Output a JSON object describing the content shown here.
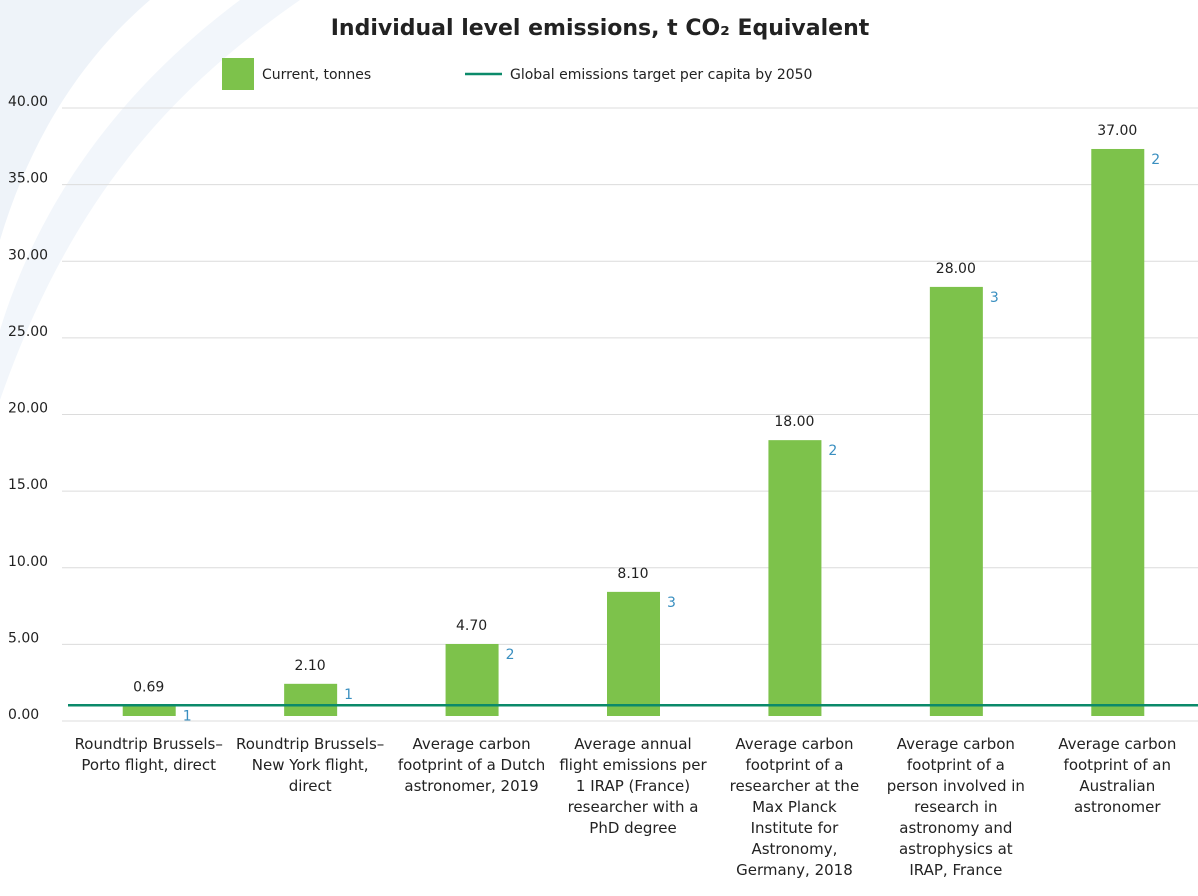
{
  "chart_data": {
    "type": "bar",
    "title": "Individual level emissions, t CO₂ Equivalent",
    "categories": [
      "Roundtrip Brussels–Porto flight, direct",
      "Roundtrip Brussels–New York flight, direct",
      "Average carbon footprint of a Dutch astronomer, 2019",
      "Average annual flight emissions per 1 IRAP (France) researcher with a PhD degree",
      "Average carbon footprint of a researcher at the Max Planck Institute for Astronomy, Germany, 2018",
      "Average carbon footprint of a person involved in research in astronomy and astrophysics at IRAP, France",
      "Average carbon footprint of an Australian astronomer"
    ],
    "series": [
      {
        "name": "Current, tonnes",
        "color": "#7dc24b",
        "values": [
          0.69,
          2.1,
          4.7,
          8.1,
          18,
          28,
          37
        ],
        "value_labels": [
          "0.69",
          "2.10",
          "4.70",
          "8.10",
          "18.00",
          "28.00",
          "37.00"
        ]
      }
    ],
    "footnotes": [
      "1",
      "1",
      "2",
      "3",
      "2",
      "3",
      "2"
    ],
    "target_line": {
      "name": "Global emissions target per capita by 2050",
      "value": 0.7,
      "color": "#0b8a6a"
    },
    "ylim": [
      0,
      40
    ],
    "yticks": [
      {
        "value": 0,
        "label": "0.00"
      },
      {
        "value": 5,
        "label": "5.00"
      },
      {
        "value": 10,
        "label": "10.00"
      },
      {
        "value": 15,
        "label": "15.00"
      },
      {
        "value": 20,
        "label": "20.00"
      },
      {
        "value": 25,
        "label": "25.00"
      },
      {
        "value": 30,
        "label": "30.00"
      },
      {
        "value": 35,
        "label": "35.00"
      },
      {
        "value": 40,
        "label": "40.00"
      }
    ],
    "grid": true
  }
}
